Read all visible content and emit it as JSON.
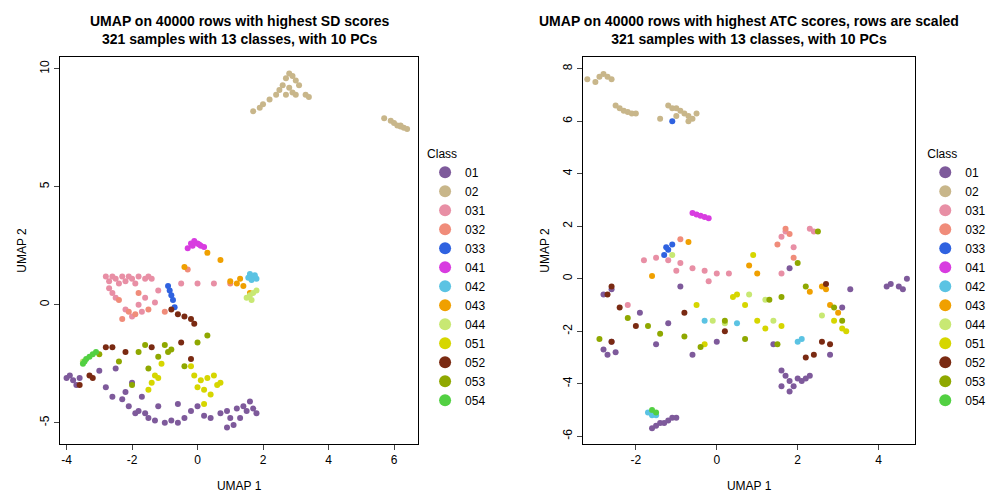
{
  "chart_data": [
    {
      "type": "scatter",
      "title": "UMAP on 40000 rows with highest SD scores\n321 samples with 13 classes, with 10 PCs",
      "x_label": "UMAP 1",
      "y_label": "UMAP 2",
      "legend_title": "Class",
      "legend": "right",
      "marker": "circle",
      "xlim": [
        -4.2,
        6.74
      ],
      "ylim": [
        -5.9,
        10.5
      ],
      "xticks": [
        -4,
        -2,
        0,
        2,
        4,
        6
      ],
      "yticks": [
        -5,
        0,
        5,
        10
      ],
      "series": [
        {
          "name": "01",
          "color": "#7E5A9B",
          "x": [
            -4.0,
            -3.8,
            -3.7,
            -3.6,
            -3.9,
            -2.8,
            -2.6,
            -2.3,
            -2.2,
            -2.5,
            -2.1,
            -1.9,
            -1.8,
            -1.6,
            -1.5,
            -1.3,
            -1.0,
            -0.8,
            -0.6,
            -0.4,
            -0.2,
            0.0,
            0.2,
            0.4,
            0.7,
            0.9,
            1.0,
            1.1,
            1.3,
            1.4,
            1.5,
            1.6,
            1.7,
            1.8,
            1.2,
            -2.0,
            -1.7,
            -1.2,
            -0.6,
            0.9,
            -3.0
          ],
          "y": [
            -3.1,
            -3.2,
            -3.4,
            -3.1,
            -3.0,
            -3.5,
            -3.9,
            -4.0,
            -3.7,
            -2.7,
            -4.3,
            -4.6,
            -4.5,
            -4.6,
            -4.8,
            -4.9,
            -5.0,
            -4.9,
            -5.0,
            -4.8,
            -4.5,
            -4.3,
            -4.7,
            -4.8,
            -4.6,
            -4.5,
            -4.8,
            -5.1,
            -4.8,
            -4.3,
            -4.5,
            -4.1,
            -4.4,
            -4.6,
            -4.4,
            -3.3,
            -3.9,
            -4.3,
            -4.2,
            -5.2,
            -2.8
          ]
        },
        {
          "name": "02",
          "color": "#C8B68A",
          "x": [
            1.7,
            1.9,
            2.0,
            2.2,
            2.4,
            2.5,
            2.6,
            2.7,
            2.8,
            2.9,
            3.0,
            2.8,
            2.9,
            3.1,
            3.0,
            3.3,
            3.4,
            2.7,
            5.7,
            5.9,
            6.0,
            6.1,
            6.2,
            6.3,
            6.4,
            6.2
          ],
          "y": [
            8.2,
            8.35,
            8.5,
            8.7,
            8.9,
            9.1,
            9.3,
            9.6,
            9.8,
            9.7,
            9.5,
            9.2,
            9.0,
            9.3,
            8.9,
            8.9,
            8.8,
            8.9,
            7.9,
            7.8,
            7.7,
            7.6,
            7.6,
            7.5,
            7.45,
            7.55
          ]
        },
        {
          "name": "031",
          "color": "#E88FA5",
          "x": [
            -2.8,
            -2.7,
            -2.6,
            -2.5,
            -2.4,
            -2.3,
            -2.2,
            -2.1,
            -2.0,
            -1.9,
            -1.8,
            -1.6,
            -1.5,
            -1.4,
            -2.6,
            -2.5,
            -2.2,
            -2.0,
            -1.8,
            -1.6,
            -1.3,
            -1.7,
            -0.5,
            0.0,
            0.5,
            -2.7,
            -1.2
          ],
          "y": [
            1.2,
            1.0,
            1.2,
            1.1,
            0.9,
            1.2,
            1.0,
            1.2,
            1.1,
            0.9,
            1.2,
            1.1,
            1.2,
            1.1,
            0.5,
            0.3,
            -0.2,
            -0.5,
            0.0,
            0.3,
            0.1,
            -0.3,
            0.9,
            0.9,
            0.9,
            0.7,
            0.6
          ]
        },
        {
          "name": "032",
          "color": "#F08C7A",
          "x": [
            -2.3,
            -2.1,
            -1.9,
            -1.5,
            -1.0,
            -2.4,
            -1.8,
            -0.3,
            1.0
          ],
          "y": [
            -0.6,
            -0.3,
            -0.4,
            -0.2,
            -0.3,
            0.2,
            0.5,
            1.5,
            0.9
          ]
        },
        {
          "name": "033",
          "color": "#2F62E0",
          "x": [
            -0.9,
            -0.85,
            -0.8,
            -0.7,
            -0.75
          ],
          "y": [
            0.8,
            0.6,
            0.4,
            -0.1,
            0.2
          ]
        },
        {
          "name": "041",
          "color": "#D83CE0",
          "x": [
            -0.3,
            -0.2,
            -0.1,
            0.0,
            0.1,
            0.2,
            -0.15,
            0.05
          ],
          "y": [
            2.4,
            2.6,
            2.7,
            2.6,
            2.5,
            2.45,
            2.5,
            2.55
          ]
        },
        {
          "name": "042",
          "color": "#5BC3E3",
          "x": [
            1.6,
            1.7,
            1.8,
            1.65,
            1.75,
            1.55
          ],
          "y": [
            1.3,
            1.2,
            1.1,
            1.05,
            1.25,
            1.15
          ]
        },
        {
          "name": "043",
          "color": "#F0A000",
          "x": [
            1.0,
            1.2,
            1.4,
            1.3,
            0.7,
            0.3,
            -0.4,
            1.6
          ],
          "y": [
            1.0,
            0.9,
            0.8,
            1.1,
            1.9,
            2.2,
            1.6,
            0.5
          ]
        },
        {
          "name": "044",
          "color": "#C8E873",
          "x": [
            1.5,
            1.6,
            1.7,
            1.8,
            1.65,
            -3.5
          ],
          "y": [
            0.3,
            0.4,
            0.5,
            0.6,
            0.2,
            -2.4
          ]
        },
        {
          "name": "051",
          "color": "#D6D600",
          "x": [
            -0.1,
            0.1,
            0.3,
            0.5,
            0.7,
            0.0,
            0.2,
            0.4,
            0.6,
            -1.2,
            -1.4,
            -1.5,
            -1.3,
            -1.1,
            0.2,
            -0.2
          ],
          "y": [
            -3.0,
            -3.2,
            -3.1,
            -3.0,
            -3.3,
            -3.5,
            -3.6,
            -3.8,
            -3.4,
            -3.1,
            -3.3,
            -3.6,
            -3.0,
            -2.5,
            -4.2,
            -2.6
          ]
        },
        {
          "name": "052",
          "color": "#7A2A12",
          "x": [
            -0.8,
            -0.6,
            -0.4,
            -0.2,
            -0.1,
            -2.8,
            -2.6,
            -2.2,
            -1.4,
            -3.2,
            -3.3,
            -0.5,
            -0.2,
            -3.6
          ],
          "y": [
            -0.2,
            -0.4,
            -0.5,
            -0.6,
            -0.8,
            -1.8,
            -1.8,
            -2.0,
            -1.8,
            -3.1,
            -3.0,
            -1.6,
            -2.3,
            -3.4
          ]
        },
        {
          "name": "053",
          "color": "#8FA800",
          "x": [
            -3.0,
            -2.4,
            -1.8,
            -1.6,
            -1.0,
            -0.8,
            -0.4,
            0.0,
            -1.2,
            -0.9,
            -1.5,
            -2.0,
            0.3
          ],
          "y": [
            -2.1,
            -2.4,
            -2.0,
            -1.7,
            -1.7,
            -1.9,
            -2.6,
            -1.6,
            -2.2,
            -2.0,
            -2.7,
            -3.4,
            -1.3
          ]
        },
        {
          "name": "054",
          "color": "#52D042",
          "x": [
            -3.5,
            -3.45,
            -3.4,
            -3.3,
            -3.2,
            -3.1
          ],
          "y": [
            -2.5,
            -2.4,
            -2.3,
            -2.2,
            -2.1,
            -2.0
          ]
        }
      ]
    },
    {
      "type": "scatter",
      "title": "UMAP on 40000 rows with highest ATC scores, rows are scaled\n321 samples with 13 classes, with 10 PCs",
      "x_label": "UMAP 1",
      "y_label": "UMAP 2",
      "legend_title": "Class",
      "legend": "right",
      "marker": "circle",
      "xlim": [
        -3.3,
        4.9
      ],
      "ylim": [
        -6.3,
        8.45
      ],
      "xticks": [
        -2,
        0,
        2,
        4
      ],
      "yticks": [
        -6,
        -4,
        -2,
        0,
        2,
        4,
        6,
        8
      ],
      "series": [
        {
          "name": "01",
          "color": "#7E5A9B",
          "x": [
            -2.6,
            -2.8,
            -2.7,
            -2.5,
            -2.6,
            -2.8,
            -1.0,
            -1.2,
            -1.4,
            -1.5,
            -1.6,
            -1.3,
            -1.1,
            1.6,
            1.7,
            1.8,
            1.9,
            2.0,
            2.1,
            2.2,
            2.3,
            1.6,
            1.8,
            4.2,
            4.3,
            4.5,
            4.6,
            4.7,
            3.3,
            0.0,
            -1.5,
            -0.6,
            1.4,
            2.8,
            -0.9,
            -1.2,
            1.8,
            3.1,
            -1.9
          ],
          "y": [
            -2.4,
            -2.7,
            -2.9,
            -2.8,
            -0.4,
            -0.6,
            -5.3,
            -5.4,
            -5.5,
            -5.6,
            -5.7,
            -5.5,
            -5.3,
            -3.5,
            -3.7,
            -3.9,
            -4.1,
            -3.8,
            -3.9,
            -3.8,
            -3.7,
            -4.1,
            -4.3,
            -0.3,
            -0.2,
            -0.3,
            -0.4,
            0.0,
            -0.4,
            -2.4,
            -2.5,
            -2.9,
            -2.5,
            -2.9,
            -0.3,
            -1.7,
            0.4,
            -1.1,
            -1.3
          ]
        },
        {
          "name": "02",
          "color": "#C8B68A",
          "x": [
            -3.2,
            -3.0,
            -2.9,
            -2.8,
            -2.7,
            -2.6,
            -2.5,
            -2.4,
            -2.3,
            -2.2,
            -2.1,
            -2.0,
            -1.2,
            -1.1,
            -1.0,
            -0.9,
            -0.8,
            -0.7,
            -0.6,
            -0.5,
            -1.4,
            -1.0,
            -0.7
          ],
          "y": [
            7.6,
            7.5,
            7.7,
            7.8,
            7.7,
            7.6,
            6.6,
            6.5,
            6.4,
            6.35,
            6.3,
            6.3,
            6.6,
            6.5,
            6.5,
            6.4,
            6.3,
            6.2,
            6.1,
            6.3,
            6.1,
            6.2,
            6.0
          ]
        },
        {
          "name": "031",
          "color": "#E88FA5",
          "x": [
            -1.8,
            -1.5,
            -1.2,
            -0.9,
            -0.6,
            -0.3,
            0.0,
            0.3,
            1.6,
            1.7,
            2.3,
            2.4,
            1.9,
            1.6,
            -1.0,
            -0.2,
            -2.2
          ],
          "y": [
            0.7,
            0.8,
            0.7,
            0.6,
            0.4,
            0.3,
            0.2,
            0.2,
            1.6,
            1.8,
            1.9,
            1.8,
            1.2,
            0.2,
            0.3,
            -0.1,
            -1.0
          ]
        },
        {
          "name": "032",
          "color": "#F08C7A",
          "x": [
            1.7,
            1.8,
            -0.9,
            1.5,
            1.9
          ],
          "y": [
            1.9,
            1.7,
            1.5,
            1.3,
            0.8
          ]
        },
        {
          "name": "033",
          "color": "#2F62E0",
          "x": [
            -1.1,
            -1.2,
            -1.25,
            -1.1,
            -1.3
          ],
          "y": [
            6.0,
            1.1,
            1.2,
            1.3,
            0.9
          ]
        },
        {
          "name": "041",
          "color": "#D83CE0",
          "x": [
            -0.6,
            -0.5,
            -0.4,
            -0.3,
            -0.2
          ],
          "y": [
            2.5,
            2.45,
            2.4,
            2.35,
            2.3
          ]
        },
        {
          "name": "042",
          "color": "#5BC3E3",
          "x": [
            -1.7,
            -1.6,
            -1.5,
            2.0,
            2.1,
            0.5,
            -0.3
          ],
          "y": [
            -5.1,
            -5.2,
            -5.2,
            -2.4,
            -2.3,
            -1.7,
            -1.6
          ]
        },
        {
          "name": "043",
          "color": "#F0A000",
          "x": [
            -0.7,
            -1.6,
            0.8,
            1.0,
            2.3,
            2.6,
            2.7,
            2.8,
            3.0
          ],
          "y": [
            1.4,
            0.1,
            0.5,
            0.2,
            -0.5,
            -0.3,
            -0.4,
            -1.0,
            -1.3
          ]
        },
        {
          "name": "044",
          "color": "#C8E873",
          "x": [
            -1.1,
            -0.1,
            0.2,
            1.4,
            2.6,
            0.8,
            1.2
          ],
          "y": [
            0.9,
            -1.6,
            -1.7,
            -1.6,
            -1.4,
            -0.6,
            -0.8
          ]
        },
        {
          "name": "051",
          "color": "#D6D600",
          "x": [
            0.5,
            0.4,
            0.7,
            1.0,
            1.2,
            -0.5,
            1.6,
            2.9,
            3.1,
            3.2,
            -0.3,
            0.9
          ],
          "y": [
            -0.6,
            -0.7,
            -1.0,
            -1.6,
            -1.9,
            -1.0,
            -1.8,
            -1.6,
            -1.9,
            -2.0,
            -2.5,
            0.9
          ]
        },
        {
          "name": "052",
          "color": "#7A2A12",
          "x": [
            -2.6,
            -2.7,
            -2.4,
            -2.6,
            -0.8,
            2.7,
            2.6,
            2.8,
            2.4,
            2.2,
            -2.0,
            0.2
          ],
          "y": [
            -0.3,
            -0.6,
            -1.1,
            -2.4,
            -1.3,
            -0.2,
            -2.4,
            -2.5,
            -2.9,
            -3.0,
            -1.8,
            -2.0
          ]
        },
        {
          "name": "053",
          "color": "#8FA800",
          "x": [
            -2.9,
            -2.2,
            -1.7,
            -1.4,
            -0.8,
            -0.4,
            0.2,
            0.7,
            1.5,
            1.3,
            1.6,
            2.2,
            2.9,
            3.1,
            2.0,
            2.5
          ],
          "y": [
            -2.3,
            -1.5,
            -1.8,
            -2.1,
            -2.2,
            -2.6,
            -1.6,
            -2.3,
            -2.5,
            -0.8,
            -0.7,
            -0.3,
            -1.1,
            -1.6,
            0.6,
            1.8
          ]
        },
        {
          "name": "054",
          "color": "#52D042",
          "x": [
            -1.6,
            -1.5
          ],
          "y": [
            -5.0,
            -5.1
          ]
        }
      ]
    }
  ]
}
